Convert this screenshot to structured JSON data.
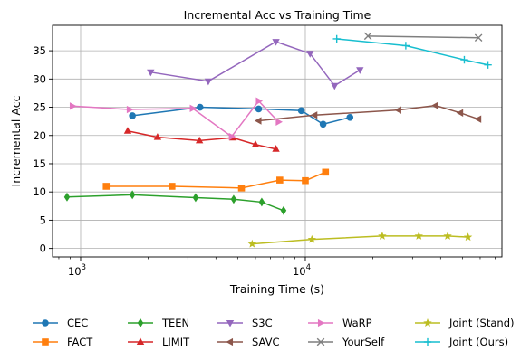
{
  "chart_data": {
    "type": "line",
    "title": "Incremental Acc vs Training Time",
    "xlabel": "Training Time (s)",
    "ylabel": "Incremental Acc",
    "xscale": "log",
    "xlim": [
      750,
      75000
    ],
    "ylim": [
      -1.5,
      39.5
    ],
    "yticks": [
      0,
      5,
      10,
      15,
      20,
      25,
      30,
      35
    ],
    "xticks": [
      {
        "value": 1000,
        "base": "10",
        "exp": "3"
      },
      {
        "value": 10000,
        "base": "10",
        "exp": "4"
      }
    ],
    "grid": "major",
    "legend_position": "below",
    "series": [
      {
        "name": "CEC",
        "color": "#1f77b4",
        "marker": "circle",
        "x": [
          1700,
          3400,
          6200,
          9600,
          12000,
          15800
        ],
        "y": [
          23.5,
          25.0,
          24.7,
          24.4,
          22.0,
          23.2
        ]
      },
      {
        "name": "FACT",
        "color": "#ff7f0e",
        "marker": "square",
        "x": [
          1300,
          2550,
          5200,
          7700,
          10000,
          12300
        ],
        "y": [
          11.0,
          11.0,
          10.7,
          12.1,
          12.0,
          13.5
        ]
      },
      {
        "name": "TEEN",
        "color": "#2ca02c",
        "marker": "diamond",
        "x": [
          870,
          1700,
          3250,
          4800,
          6400,
          8000
        ],
        "y": [
          9.1,
          9.5,
          9.0,
          8.7,
          8.2,
          6.7
        ]
      },
      {
        "name": "LIMIT",
        "color": "#d62728",
        "marker": "triangle-up",
        "x": [
          1620,
          2200,
          3380,
          4760,
          6000,
          7400
        ],
        "y": [
          20.8,
          19.7,
          19.1,
          19.6,
          18.4,
          17.6
        ]
      },
      {
        "name": "S3C",
        "color": "#9467bd",
        "marker": "triangle-down",
        "x": [
          2050,
          3700,
          7400,
          10500,
          13500,
          17500
        ],
        "y": [
          31.2,
          29.6,
          36.6,
          34.5,
          28.8,
          31.6
        ]
      },
      {
        "name": "SAVC",
        "color": "#8c564b",
        "marker": "triangle-left",
        "x": [
          6200,
          11000,
          26000,
          38000,
          49000,
          59000
        ],
        "y": [
          22.6,
          23.6,
          24.5,
          25.3,
          24.0,
          22.9
        ]
      },
      {
        "name": "WaRP",
        "color": "#e377c2",
        "marker": "triangle-right",
        "x": [
          920,
          1650,
          3150,
          4700,
          6200,
          7600
        ],
        "y": [
          25.2,
          24.6,
          24.8,
          19.8,
          26.1,
          22.4
        ]
      },
      {
        "name": "YourSelf",
        "color": "#7f7f7f",
        "marker": "x",
        "x": [
          19000,
          59000
        ],
        "y": [
          37.6,
          37.3
        ]
      },
      {
        "name": "Joint (Stand)",
        "color": "#bcbd22",
        "marker": "star",
        "x": [
          5800,
          10700,
          22000,
          32000,
          43000,
          53000
        ],
        "y": [
          0.8,
          1.6,
          2.2,
          2.2,
          2.2,
          2.0
        ]
      },
      {
        "name": "Joint (Ours)",
        "color": "#17becf",
        "marker": "plus",
        "x": [
          13800,
          28000,
          51000,
          65000
        ],
        "y": [
          37.1,
          35.9,
          33.4,
          32.5
        ]
      }
    ]
  }
}
